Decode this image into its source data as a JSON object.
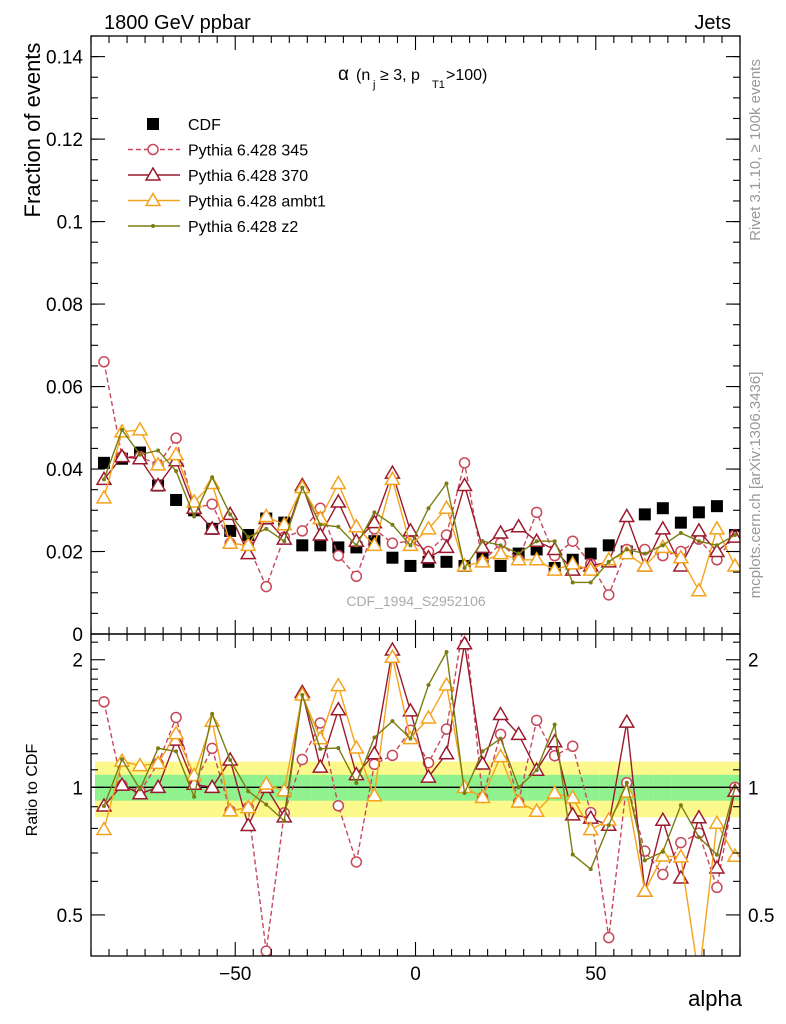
{
  "header": {
    "left": "1800 GeV ppbar",
    "right": "Jets"
  },
  "side_text": {
    "rivet": "Rivet 3.1.10, ≥ 100k events",
    "mcplots": "mcplots.cern.ch [arXiv:1306.3436]"
  },
  "watermark": "CDF_1994_S2952106",
  "plot_title": "α (n_j ≥ 3, p_T1 > 100)",
  "chart_data": [
    {
      "type": "scatter",
      "panel": "main",
      "ylabel": "Fraction of events",
      "xlabel": "alpha",
      "xlim": [
        -90,
        90
      ],
      "ylim": [
        0,
        0.145
      ],
      "yticks": [
        0,
        0.02,
        0.04,
        0.06,
        0.08,
        0.1,
        0.12,
        0.14
      ],
      "ytick_labels": [
        "0",
        "0.02",
        "0.04",
        "0.06",
        "0.08",
        "0.1",
        "0.12",
        "0.14"
      ],
      "legend_position": "top-left",
      "x": [
        -86.4,
        -81.4,
        -76.4,
        -71.4,
        -66.4,
        -61.4,
        -56.4,
        -51.4,
        -46.4,
        -41.4,
        -36.4,
        -31.4,
        -26.4,
        -21.4,
        -16.4,
        -11.4,
        -6.4,
        -1.4,
        3.6,
        8.6,
        13.6,
        18.6,
        23.6,
        28.6,
        33.6,
        38.6,
        43.6,
        48.6,
        53.6,
        58.6,
        63.6,
        68.6,
        73.6,
        78.6,
        83.6,
        88.6
      ],
      "series": [
        {
          "name": "CDF",
          "color": "#000000",
          "marker": "filled-square",
          "values": [
            0.0415,
            0.0425,
            0.044,
            0.036,
            0.0325,
            0.03,
            0.0255,
            0.025,
            0.024,
            0.028,
            0.027,
            0.0215,
            0.0215,
            0.021,
            0.021,
            0.0225,
            0.0185,
            0.0165,
            0.0175,
            0.0175,
            0.0165,
            0.0185,
            0.0165,
            0.0195,
            0.0205,
            0.016,
            0.018,
            0.0195,
            0.0215,
            0.02,
            0.029,
            0.0305,
            0.027,
            0.0295,
            0.031,
            0.024
          ]
        },
        {
          "name": "Pythia 6.428 345",
          "color": "#c8485a",
          "marker": "open-circle",
          "dash": true,
          "values": [
            0.066,
            0.043,
            0.043,
            0.041,
            0.0475,
            0.0305,
            0.0315,
            0.022,
            0.0215,
            0.0115,
            0.0235,
            0.025,
            0.0305,
            0.019,
            0.014,
            0.0255,
            0.022,
            0.0225,
            0.02,
            0.024,
            0.0415,
            0.0175,
            0.022,
            0.018,
            0.0295,
            0.019,
            0.0225,
            0.017,
            0.0095,
            0.0205,
            0.0205,
            0.019,
            0.02,
            0.023,
            0.018,
            0.024
          ]
        },
        {
          "name": "Pythia 6.428 370",
          "color": "#9b1a2e",
          "marker": "open-triangle",
          "values": [
            0.0375,
            0.043,
            0.0425,
            0.036,
            0.042,
            0.0305,
            0.0255,
            0.029,
            0.0195,
            0.028,
            0.023,
            0.036,
            0.024,
            0.032,
            0.0225,
            0.027,
            0.039,
            0.025,
            0.0185,
            0.021,
            0.036,
            0.021,
            0.0245,
            0.026,
            0.0225,
            0.0205,
            0.0155,
            0.0165,
            0.0175,
            0.0285,
            0.0165,
            0.0255,
            0.0165,
            0.025,
            0.02,
            0.0235
          ]
        },
        {
          "name": "Pythia 6.428 ambt1",
          "color": "#f4a31d",
          "marker": "open-triangle",
          "values": [
            0.033,
            0.049,
            0.0495,
            0.041,
            0.0435,
            0.032,
            0.0365,
            0.022,
            0.0215,
            0.0285,
            0.0265,
            0.0355,
            0.028,
            0.0365,
            0.026,
            0.0215,
            0.0375,
            0.0215,
            0.0255,
            0.0305,
            0.0165,
            0.0175,
            0.0195,
            0.018,
            0.018,
            0.0155,
            0.017,
            0.0155,
            0.018,
            0.0195,
            0.0165,
            0.021,
            0.0185,
            0.0105,
            0.0255,
            0.0165
          ]
        },
        {
          "name": "Pythia 6.428 z2",
          "color": "#7a7d10",
          "marker": "dot",
          "values": [
            0.0375,
            0.0495,
            0.0435,
            0.0445,
            0.0395,
            0.0285,
            0.038,
            0.029,
            0.0235,
            0.0255,
            0.0225,
            0.0355,
            0.0265,
            0.026,
            0.0215,
            0.0295,
            0.0265,
            0.0215,
            0.0305,
            0.0365,
            0.016,
            0.0225,
            0.0215,
            0.0195,
            0.0225,
            0.0225,
            0.0125,
            0.0125,
            0.0175,
            0.0205,
            0.0195,
            0.0215,
            0.0245,
            0.0225,
            0.0215,
            0.024
          ]
        }
      ]
    },
    {
      "type": "scatter",
      "panel": "ratio",
      "ylabel": "Ratio to CDF",
      "xlabel": "alpha",
      "xlim": [
        -90,
        90
      ],
      "ylim": [
        0.4,
        2.3
      ],
      "log_scale_y": true,
      "yticks": [
        0.5,
        1,
        2
      ],
      "ytick_labels": [
        "0.5",
        "1",
        "2"
      ],
      "xticks": [
        -50,
        0,
        50
      ],
      "xtick_labels": [
        "−50",
        "0",
        "50"
      ],
      "reference_line": 1,
      "bands": [
        {
          "name": "stat",
          "color": "#8ff28f",
          "halfwidth": [
            0.07,
            0.07,
            0.07,
            0.07,
            0.07,
            0.07,
            0.07,
            0.07,
            0.07,
            0.07,
            0.07,
            0.07,
            0.07,
            0.07,
            0.07,
            0.07,
            0.07,
            0.07,
            0.07,
            0.07,
            0.07,
            0.07,
            0.07,
            0.07,
            0.07,
            0.07,
            0.07,
            0.07,
            0.07,
            0.07,
            0.07,
            0.07,
            0.07,
            0.07,
            0.07,
            0.07
          ]
        },
        {
          "name": "total",
          "color": "#fbf98c",
          "halfwidth": [
            0.15,
            0.15,
            0.15,
            0.15,
            0.15,
            0.15,
            0.15,
            0.15,
            0.15,
            0.15,
            0.15,
            0.15,
            0.15,
            0.15,
            0.15,
            0.15,
            0.15,
            0.15,
            0.15,
            0.15,
            0.15,
            0.15,
            0.15,
            0.15,
            0.15,
            0.15,
            0.15,
            0.15,
            0.15,
            0.15,
            0.15,
            0.15,
            0.15,
            0.15,
            0.15,
            0.15
          ]
        }
      ]
    }
  ]
}
